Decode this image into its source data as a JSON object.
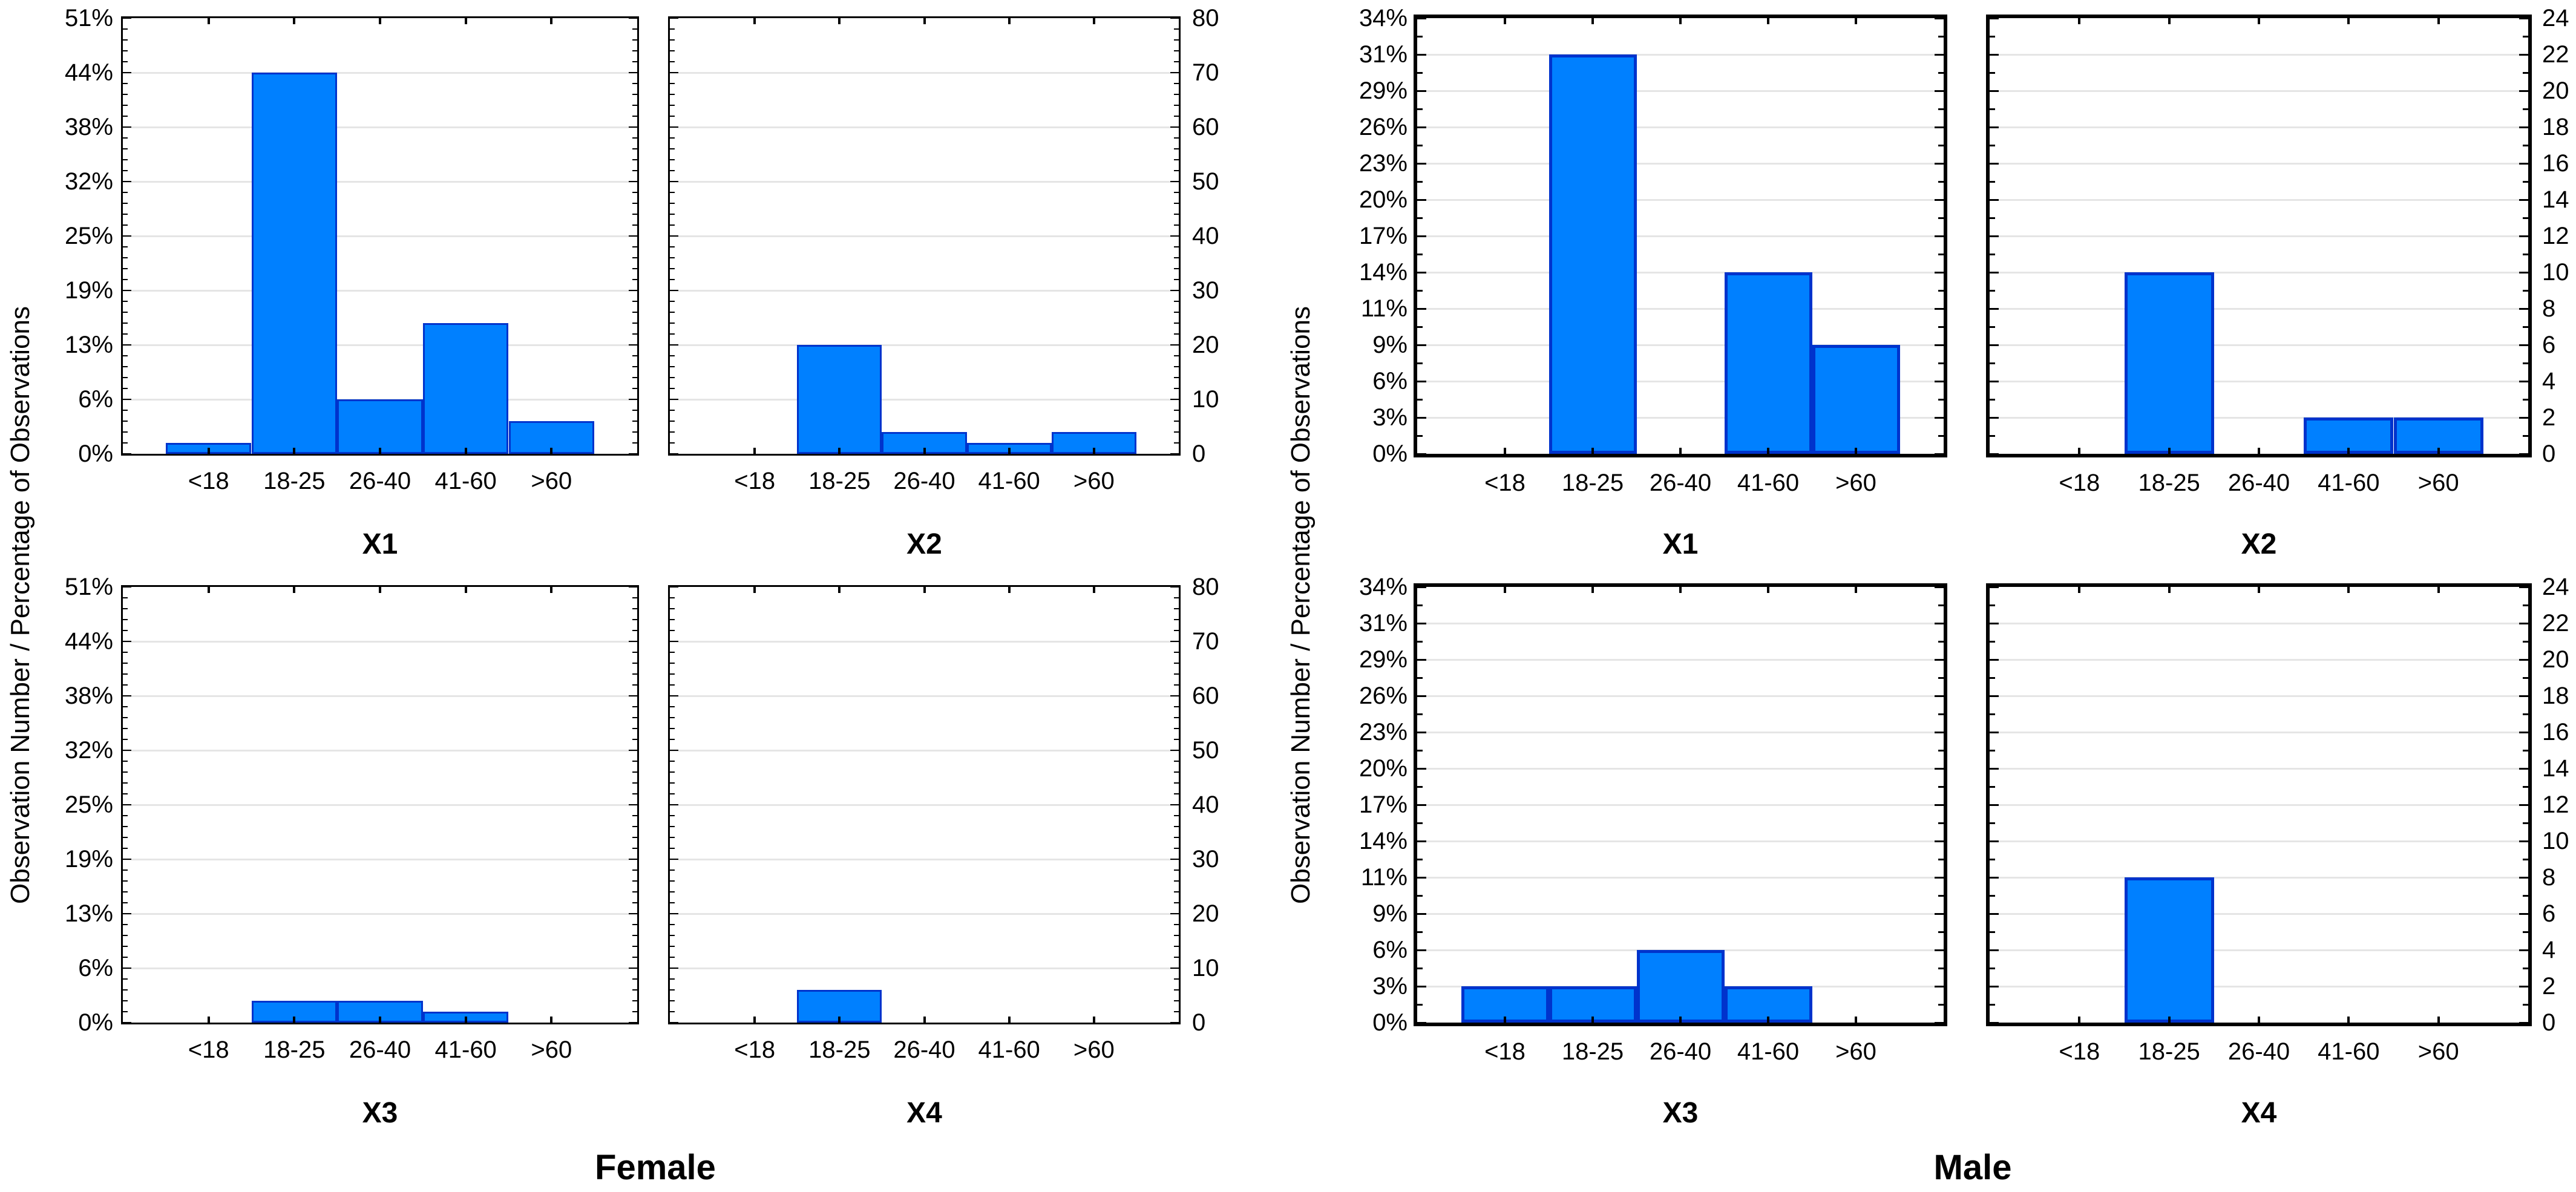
{
  "chart_data": {
    "type": "bar",
    "title": "",
    "layout": "two panels (Female, Male); each panel is a 2x2 grid of histograms over age categories; left column shows percent axis, right column shows observation-count axis; light horizontal gridlines at every major tick; y-axis maxima: Female 51% = 80 observations, Male 34% = 24 observations",
    "bar_style": {
      "fill": "#0080FF",
      "border": "#0033CC"
    },
    "panels": [
      {
        "id": "female",
        "label": "Female",
        "y_axis_label": "Observation Number / Percentage of Observations",
        "categories": [
          "<18",
          "18-25",
          "26-40",
          "41-60",
          ">60"
        ],
        "percent_tick_labels": [
          "0%",
          "6%",
          "13%",
          "19%",
          "25%",
          "32%",
          "38%",
          "44%",
          "51%"
        ],
        "count_tick_labels": [
          "0",
          "10",
          "20",
          "30",
          "40",
          "50",
          "60",
          "70",
          "80"
        ],
        "count_axis_max": 80,
        "count_minor_step": 2,
        "charts": [
          {
            "title": "X1",
            "counts": [
              2,
              70,
              10,
              24,
              6
            ]
          },
          {
            "title": "X2",
            "counts": [
              0,
              20,
              4,
              2,
              4
            ]
          },
          {
            "title": "X3",
            "counts": [
              0,
              4,
              4,
              2,
              0
            ]
          },
          {
            "title": "X4",
            "counts": [
              0,
              6,
              0,
              0,
              0
            ]
          }
        ]
      },
      {
        "id": "male",
        "label": "Male",
        "y_axis_label": "Observation Number / Percentage of Observations",
        "categories": [
          "<18",
          "18-25",
          "26-40",
          "41-60",
          ">60"
        ],
        "percent_tick_labels": [
          "0%",
          "3%",
          "6%",
          "9%",
          "11%",
          "14%",
          "17%",
          "20%",
          "23%",
          "26%",
          "29%",
          "31%",
          "34%"
        ],
        "count_tick_labels": [
          "0",
          "2",
          "4",
          "6",
          "8",
          "10",
          "12",
          "14",
          "16",
          "18",
          "20",
          "22",
          "24"
        ],
        "count_axis_max": 24,
        "count_minor_step": 1,
        "charts": [
          {
            "title": "X1",
            "counts": [
              0,
              22,
              0,
              10,
              6
            ]
          },
          {
            "title": "X2",
            "counts": [
              0,
              10,
              0,
              2,
              2
            ]
          },
          {
            "title": "X3",
            "counts": [
              2,
              2,
              4,
              2,
              0
            ]
          },
          {
            "title": "X4",
            "counts": [
              0,
              8,
              0,
              0,
              0
            ]
          }
        ]
      }
    ],
    "colors": {
      "bar_fill": "#0080FF",
      "bar_border": "#0033CC",
      "grid_line": "#E5E5E5",
      "frame": "#000000",
      "background": "#FFFFFF",
      "text": "#000000"
    }
  }
}
